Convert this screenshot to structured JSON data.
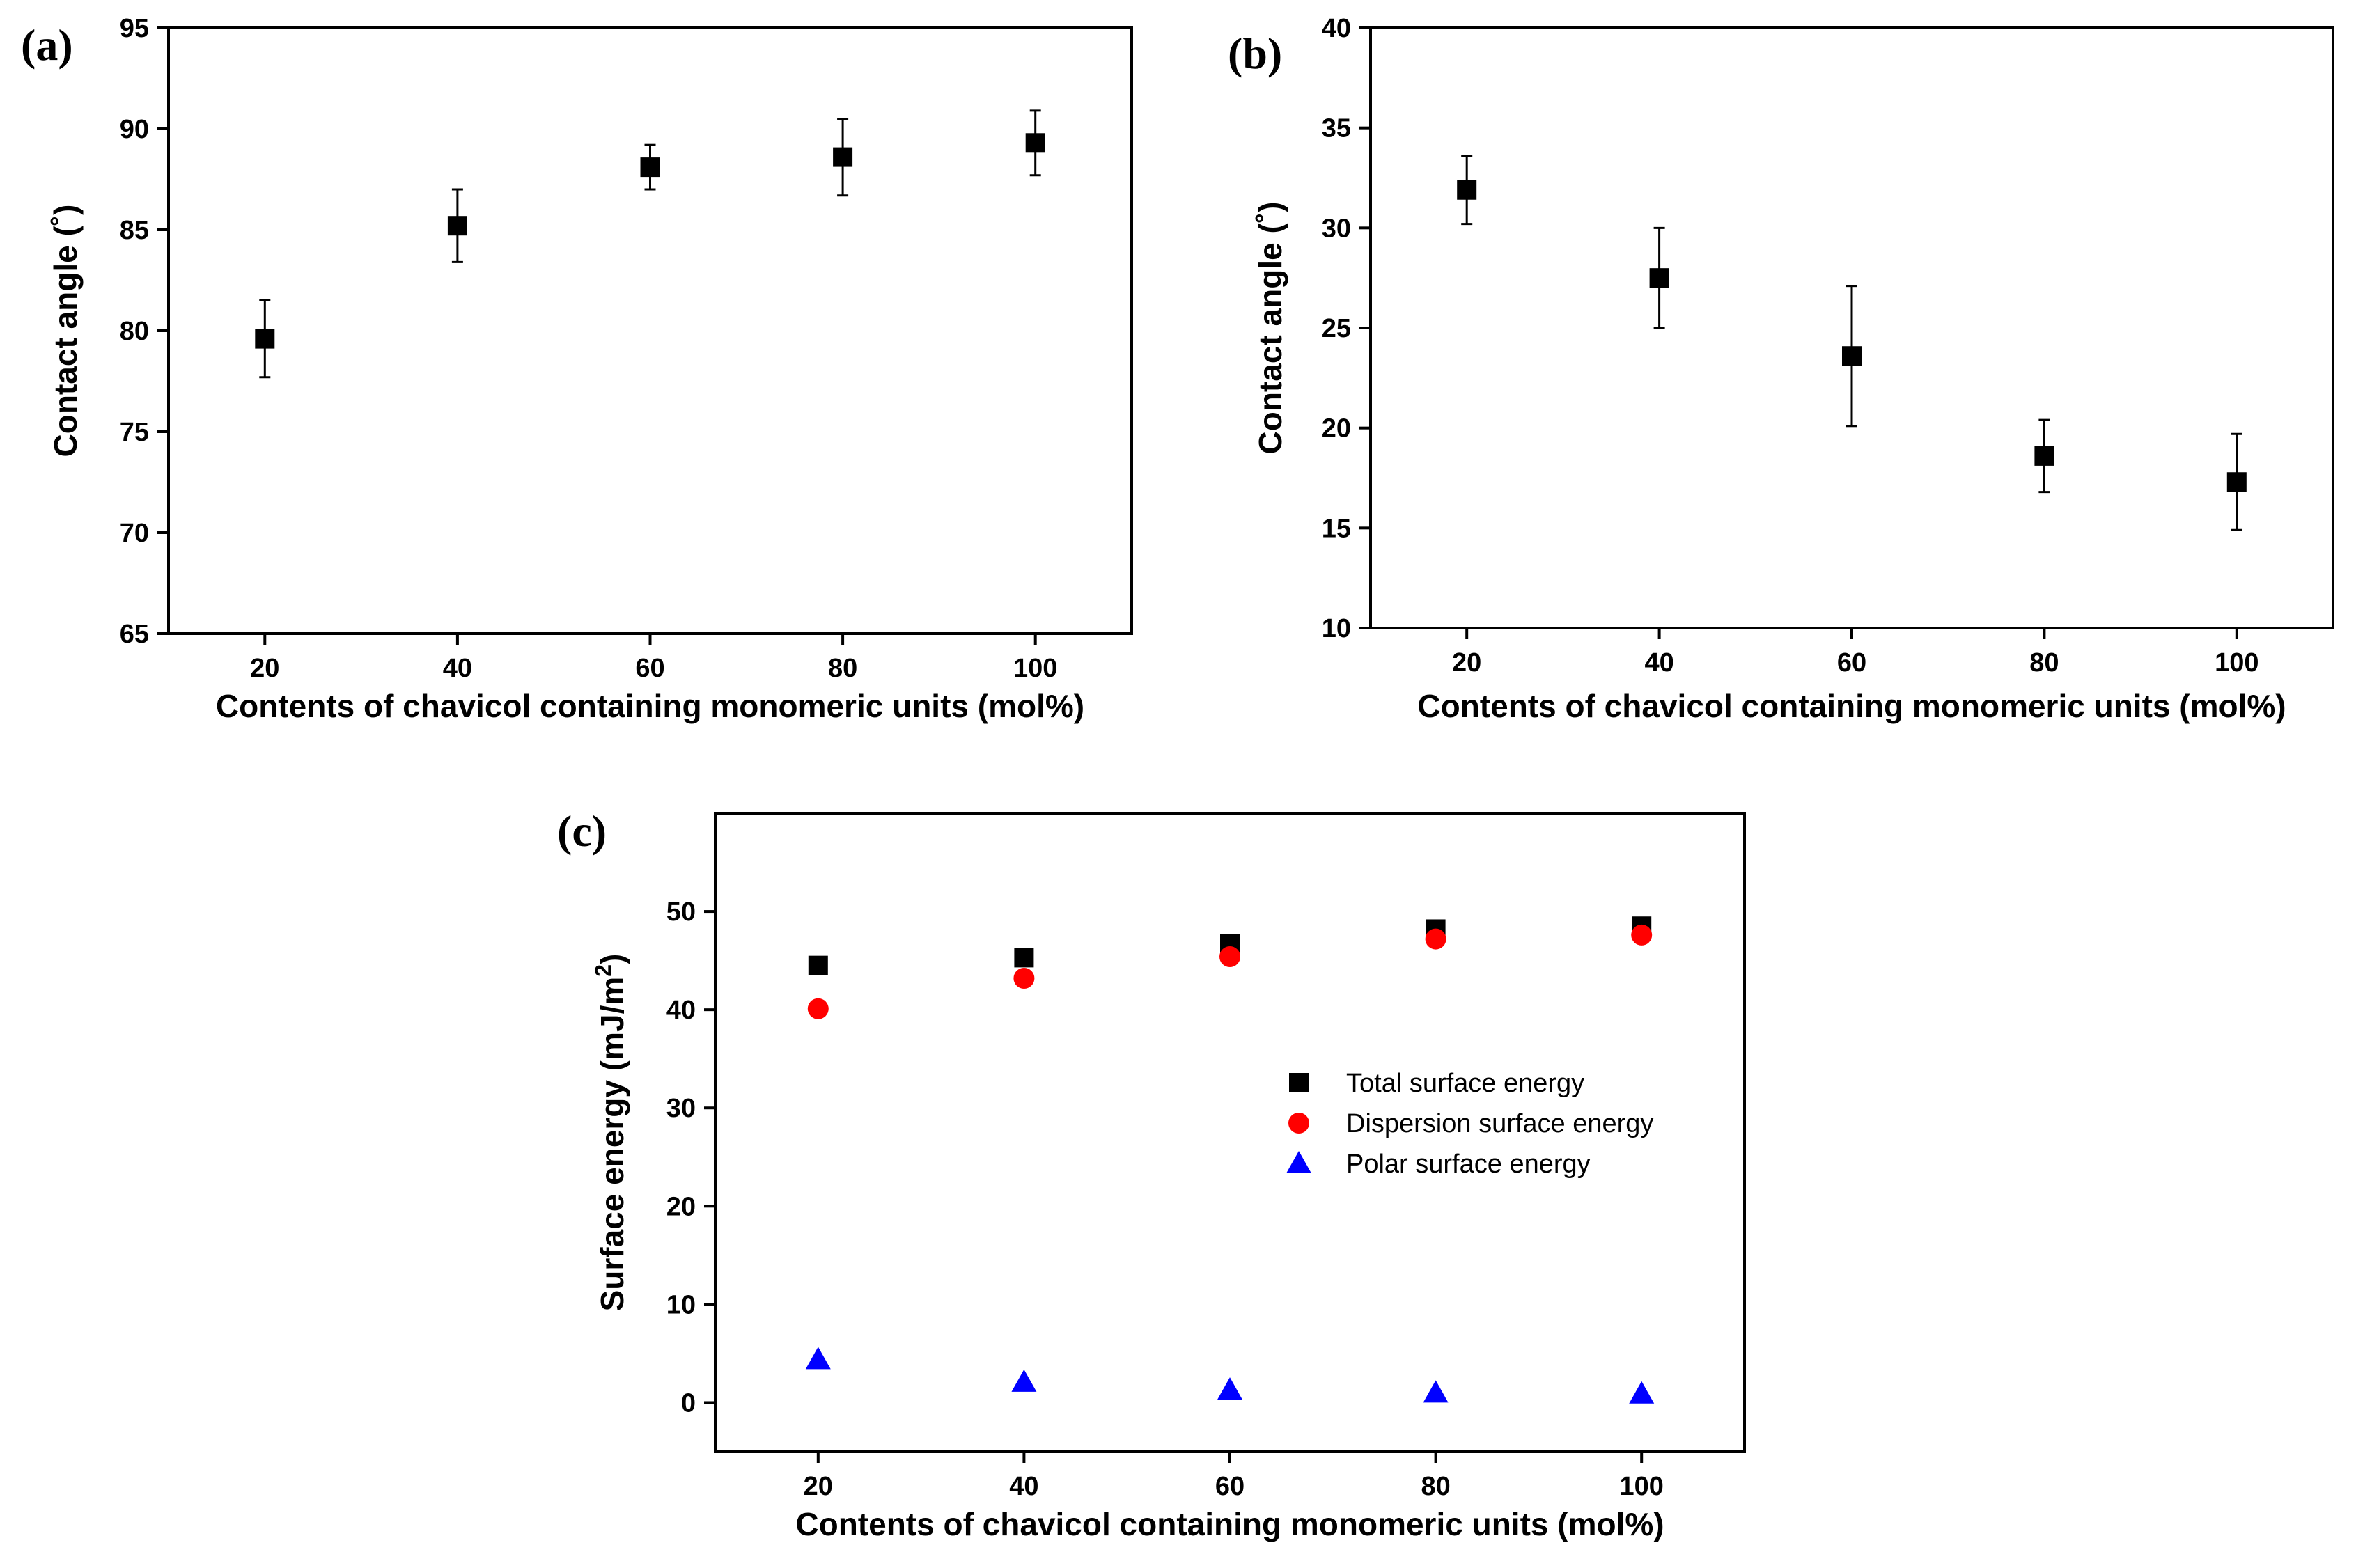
{
  "chart_data": [
    {
      "type": "scatter",
      "panel_label": "(a)",
      "xlabel": "Contents of chavicol containing monomeric units (mol%)",
      "ylabel": "Contact angle (˚)",
      "xlim": [
        10,
        110
      ],
      "ylim": [
        65,
        95
      ],
      "xticks": [
        20,
        40,
        60,
        80,
        100
      ],
      "yticks": [
        65,
        70,
        75,
        80,
        85,
        90,
        95
      ],
      "grid": false,
      "series": [
        {
          "name": "Contact angle",
          "marker": "square",
          "color": "#000000",
          "x": [
            20,
            40,
            60,
            80,
            100
          ],
          "y": [
            79.6,
            85.2,
            88.1,
            88.6,
            89.3
          ],
          "err": [
            1.9,
            1.8,
            1.1,
            1.9,
            1.6
          ]
        }
      ]
    },
    {
      "type": "scatter",
      "panel_label": "(b)",
      "xlabel": "Contents of chavicol containing monomeric units (mol%)",
      "ylabel": "Contact angle (˚)",
      "xlim": [
        10,
        110
      ],
      "ylim": [
        10,
        40
      ],
      "xticks": [
        20,
        40,
        60,
        80,
        100
      ],
      "yticks": [
        10,
        15,
        20,
        25,
        30,
        35,
        40
      ],
      "grid": false,
      "series": [
        {
          "name": "Contact angle",
          "marker": "square",
          "color": "#000000",
          "x": [
            20,
            40,
            60,
            80,
            100
          ],
          "y": [
            31.9,
            27.5,
            23.6,
            18.6,
            17.3
          ],
          "err": [
            1.7,
            2.5,
            3.5,
            1.8,
            2.4
          ]
        }
      ]
    },
    {
      "type": "scatter",
      "panel_label": "(c)",
      "xlabel": "Contents of chavicol containing monomeric units (mol%)",
      "ylabel": "Surface energy (mJ/m",
      "ylabel_sup": "2",
      "ylabel_end": ")",
      "xlim": [
        10,
        110
      ],
      "ylim": [
        -5,
        60
      ],
      "xticks": [
        20,
        40,
        60,
        80,
        100
      ],
      "yticks": [
        0,
        10,
        20,
        30,
        40,
        50
      ],
      "grid": false,
      "legend_position": "center-right",
      "series": [
        {
          "name": "Total surface energy",
          "marker": "square",
          "color": "#000000",
          "x": [
            20,
            40,
            60,
            80,
            100
          ],
          "y": [
            44.5,
            45.3,
            46.7,
            48.2,
            48.5
          ]
        },
        {
          "name": "Dispersion surface energy",
          "marker": "circle",
          "color": "#ff0000",
          "x": [
            20,
            40,
            60,
            80,
            100
          ],
          "y": [
            40.1,
            43.2,
            45.4,
            47.2,
            47.6
          ]
        },
        {
          "name": "Polar surface energy",
          "marker": "triangle",
          "color": "#0000ff",
          "x": [
            20,
            40,
            60,
            80,
            100
          ],
          "y": [
            4.4,
            2.1,
            1.3,
            1.0,
            0.9
          ]
        }
      ]
    }
  ]
}
